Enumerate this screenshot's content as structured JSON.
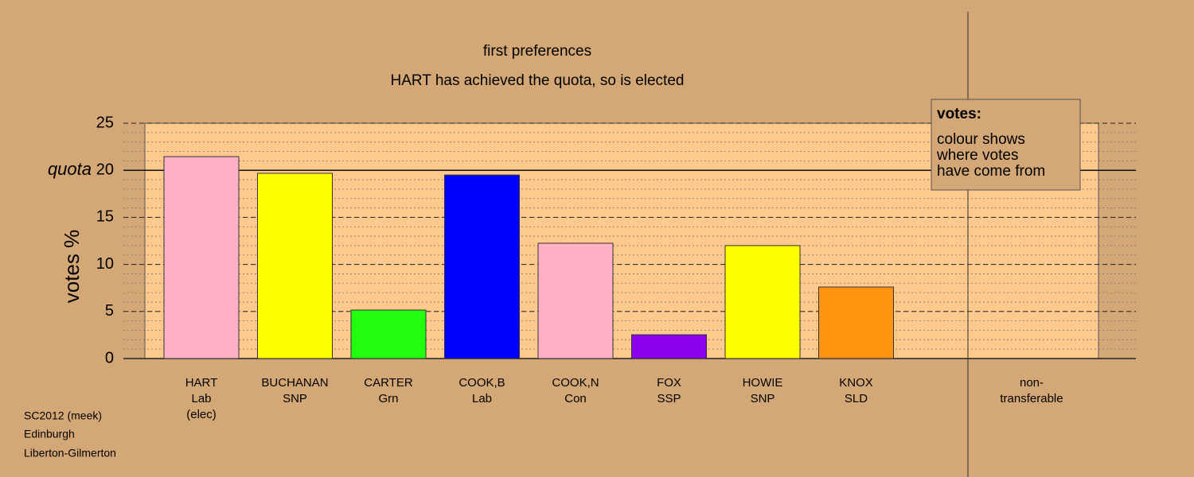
{
  "chart_data": {
    "type": "bar",
    "title": "first preferences",
    "subtitle": "HART has achieved the quota, so is elected",
    "y_label": "votes %",
    "categories": [
      [
        "HART",
        "Lab",
        "(elec)"
      ],
      [
        "BUCHANAN",
        "SNP"
      ],
      [
        "CARTER",
        "Grn"
      ],
      [
        "COOK,B",
        "Lab"
      ],
      [
        "COOK,N",
        "Con"
      ],
      [
        "FOX",
        "SSP"
      ],
      [
        "HOWIE",
        "SNP"
      ],
      [
        "KNOX",
        "SLD"
      ],
      [
        "non-",
        "transferable"
      ]
    ],
    "values": [
      21.45,
      19.68,
      5.15,
      19.5,
      12.25,
      2.53,
      12.0,
      7.6,
      null
    ],
    "colors": [
      "#ffb0c4",
      "#ffff00",
      "#22ff10",
      "#0000ff",
      "#ffb0c4",
      "#8a00ee",
      "#ffff00",
      "#ff9410",
      null
    ],
    "ylim": [
      0,
      25
    ],
    "yticks": [
      0,
      5,
      10,
      15,
      20,
      25
    ],
    "minor_grid_step": 1,
    "quota": 20,
    "quota_label": "quota",
    "legend_title": "votes:",
    "legend_lines": [
      "colour shows",
      "where votes",
      "have come from"
    ],
    "notes": [
      "SC2012 (meek)",
      "Edinburgh",
      "Liberton-Gilmerton"
    ]
  }
}
